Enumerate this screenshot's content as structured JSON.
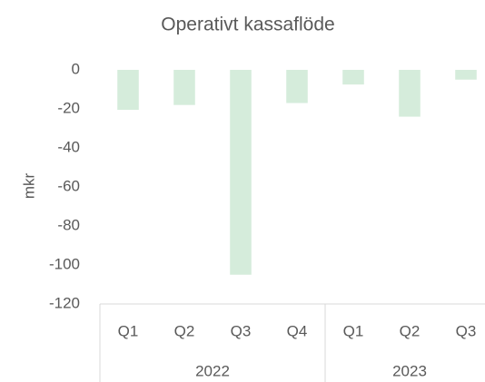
{
  "chart_data": {
    "type": "bar",
    "title": "Operativt kassaflöde",
    "y_label": "mkr",
    "groups": [
      {
        "label": "2022",
        "categories": [
          "Q1",
          "Q2",
          "Q3",
          "Q4"
        ],
        "values": [
          -20.5,
          -18,
          -105,
          -17
        ]
      },
      {
        "label": "2023",
        "categories": [
          "Q1",
          "Q2",
          "Q3"
        ],
        "values": [
          -7.5,
          -24,
          -5
        ]
      }
    ],
    "color": "#d5ecdb",
    "ylim": [
      -120,
      0
    ],
    "yticks": [
      0,
      -20,
      -40,
      -60,
      -80,
      -100,
      -120
    ],
    "grid": false
  }
}
